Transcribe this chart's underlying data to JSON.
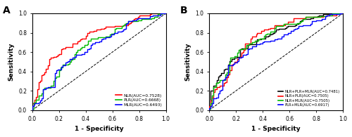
{
  "panel_A": {
    "title": "A",
    "curves": [
      {
        "label": "NLR(AUC=0.7528)",
        "color": "#FF0000",
        "auc": 0.7528,
        "seed": 101
      },
      {
        "label": "PLR(AUC=0.6668)",
        "color": "#00BB00",
        "auc": 0.6668,
        "seed": 202
      },
      {
        "label": "MLR(AUC=0.6493)",
        "color": "#0000FF",
        "auc": 0.6493,
        "seed": 303
      }
    ]
  },
  "panel_B": {
    "title": "B",
    "curves": [
      {
        "label": "NLR+PLR+MLR(AUC=0.7481)",
        "color": "#000000",
        "auc": 0.7481,
        "seed": 404
      },
      {
        "label": "NLR+PLR(AUC=0.7505)",
        "color": "#FF0000",
        "auc": 0.7505,
        "seed": 505
      },
      {
        "label": "NLR+MLR(AUC=0.7505)",
        "color": "#00BB00",
        "auc": 0.7505,
        "seed": 606
      },
      {
        "label": "PLR+MLR(AUC=0.6917)",
        "color": "#0000FF",
        "auc": 0.6917,
        "seed": 707
      }
    ]
  },
  "xlabel": "1 - Specificity",
  "ylabel": "Sensitivity",
  "xlim": [
    0.0,
    1.0
  ],
  "ylim": [
    0.0,
    1.0
  ],
  "xticks": [
    0.0,
    0.2,
    0.4,
    0.6,
    0.8,
    1.0
  ],
  "yticks": [
    0.0,
    0.2,
    0.4,
    0.6,
    0.8,
    1.0
  ]
}
